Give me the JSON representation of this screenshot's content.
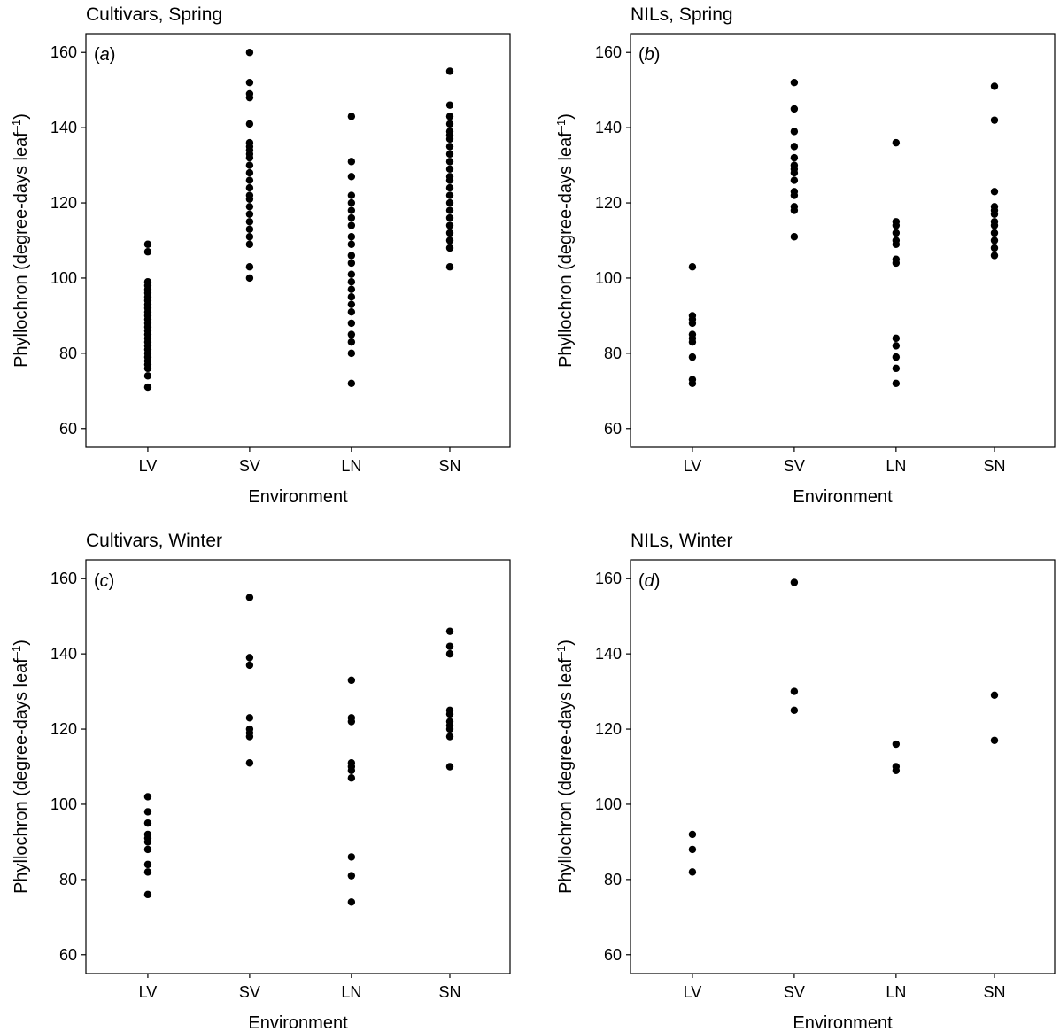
{
  "chart_data": [
    {
      "type": "scatter",
      "title": "Cultivars, Spring",
      "panel_label": "a",
      "xlabel": "Environment",
      "ylabel": "Phyllochron (degree-days leaf",
      "ylabel_sup": "–1",
      "ylabel_close": ")",
      "categories": [
        "LV",
        "SV",
        "LN",
        "SN"
      ],
      "y_ticks": [
        60,
        80,
        100,
        120,
        140,
        160
      ],
      "ylim": [
        55,
        165
      ],
      "grid": false,
      "points": [
        {
          "x": "LV",
          "y": [
            71,
            74,
            76,
            77,
            78,
            79,
            80,
            81,
            82,
            83,
            84,
            85,
            86,
            87,
            88,
            89,
            90,
            91,
            92,
            93,
            94,
            95,
            96,
            97,
            98,
            99,
            107,
            109
          ]
        },
        {
          "x": "SV",
          "y": [
            100,
            103,
            109,
            111,
            113,
            115,
            117,
            119,
            121,
            122,
            124,
            126,
            128,
            130,
            132,
            133,
            134,
            135,
            136,
            141,
            148,
            149,
            152,
            160
          ]
        },
        {
          "x": "LN",
          "y": [
            72,
            80,
            83,
            85,
            88,
            91,
            93,
            95,
            97,
            99,
            101,
            104,
            106,
            109,
            111,
            114,
            116,
            118,
            120,
            122,
            127,
            131,
            143
          ]
        },
        {
          "x": "SN",
          "y": [
            103,
            108,
            110,
            112,
            114,
            116,
            118,
            120,
            122,
            124,
            126,
            127,
            129,
            131,
            133,
            135,
            137,
            138,
            139,
            141,
            143,
            146,
            155
          ]
        }
      ]
    },
    {
      "type": "scatter",
      "title": "NILs, Spring",
      "panel_label": "b",
      "xlabel": "Environment",
      "ylabel": "Phyllochron (degree-days leaf",
      "ylabel_sup": "–1",
      "ylabel_close": ")",
      "categories": [
        "LV",
        "SV",
        "LN",
        "SN"
      ],
      "y_ticks": [
        60,
        80,
        100,
        120,
        140,
        160
      ],
      "ylim": [
        55,
        165
      ],
      "grid": false,
      "points": [
        {
          "x": "LV",
          "y": [
            72,
            73,
            79,
            83,
            84,
            85,
            88,
            89,
            90,
            103
          ]
        },
        {
          "x": "SV",
          "y": [
            111,
            118,
            119,
            122,
            123,
            126,
            128,
            129,
            130,
            132,
            135,
            139,
            145,
            152
          ]
        },
        {
          "x": "LN",
          "y": [
            72,
            76,
            79,
            82,
            84,
            104,
            105,
            109,
            110,
            112,
            114,
            115,
            136
          ]
        },
        {
          "x": "SN",
          "y": [
            106,
            108,
            110,
            112,
            114,
            115,
            117,
            118,
            119,
            123,
            142,
            151
          ]
        }
      ]
    },
    {
      "type": "scatter",
      "title": "Cultivars, Winter",
      "panel_label": "c",
      "xlabel": "Environment",
      "ylabel": "Phyllochron (degree-days leaf",
      "ylabel_sup": "–1",
      "ylabel_close": ")",
      "categories": [
        "LV",
        "SV",
        "LN",
        "SN"
      ],
      "y_ticks": [
        60,
        80,
        100,
        120,
        140,
        160
      ],
      "ylim": [
        55,
        165
      ],
      "grid": false,
      "points": [
        {
          "x": "LV",
          "y": [
            76,
            82,
            84,
            88,
            90,
            91,
            92,
            95,
            98,
            102
          ]
        },
        {
          "x": "SV",
          "y": [
            111,
            118,
            119,
            120,
            123,
            137,
            139,
            155
          ]
        },
        {
          "x": "LN",
          "y": [
            74,
            81,
            86,
            107,
            109,
            110,
            111,
            122,
            123,
            133
          ]
        },
        {
          "x": "SN",
          "y": [
            110,
            118,
            120,
            121,
            122,
            124,
            125,
            140,
            142,
            146
          ]
        }
      ]
    },
    {
      "type": "scatter",
      "title": "NILs, Winter",
      "panel_label": "d",
      "xlabel": "Environment",
      "ylabel": "Phyllochron (degree-days leaf",
      "ylabel_sup": "–1",
      "ylabel_close": ")",
      "categories": [
        "LV",
        "SV",
        "LN",
        "SN"
      ],
      "y_ticks": [
        60,
        80,
        100,
        120,
        140,
        160
      ],
      "ylim": [
        55,
        165
      ],
      "grid": false,
      "points": [
        {
          "x": "LV",
          "y": [
            82,
            88,
            92
          ]
        },
        {
          "x": "SV",
          "y": [
            125,
            130,
            159
          ]
        },
        {
          "x": "LN",
          "y": [
            109,
            110,
            116
          ]
        },
        {
          "x": "SN",
          "y": [
            117,
            129
          ]
        }
      ]
    }
  ]
}
